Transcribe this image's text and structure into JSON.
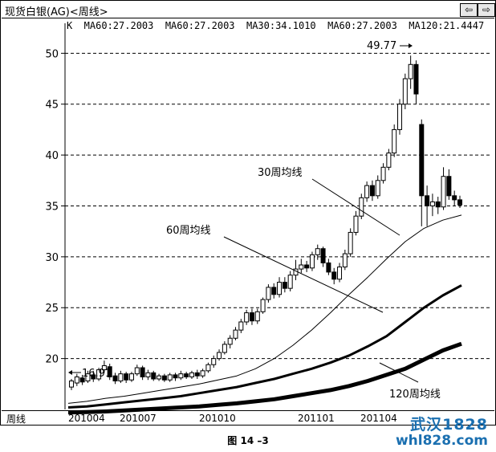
{
  "window": {
    "title": "现货白银(AG)<周线>",
    "prev_label": "⇦",
    "next_label": "⇨"
  },
  "legend_line": "K  MA60:27.2003  MA60:27.2003  MA30:34.1010  MA60:27.2003  MA120:21.4447",
  "x_axis_name": "周线",
  "caption": "图 14 –3",
  "watermark": {
    "line1": "武汉1828",
    "line2": "whl828.com"
  },
  "colors": {
    "ink": "#000000",
    "grid": "#000000",
    "watermark": "#1a6fb0"
  },
  "chart_data": {
    "type": "candlestick",
    "ylim": [
      15,
      52
    ],
    "yticks": [
      20,
      25,
      30,
      35,
      40,
      45,
      50
    ],
    "grid": "dashed horizontal",
    "x_ticks": [
      "201004",
      "201007",
      "201010",
      "201101",
      "201104"
    ],
    "annotations": {
      "high_label": "49.77",
      "low_label": "16.91",
      "ma30": "30周均线",
      "ma60": "60周均线",
      "ma120": "120周均线"
    },
    "candles": [
      [
        17.2,
        17.8,
        16.9,
        18.0
      ],
      [
        17.6,
        18.2,
        17.3,
        18.5
      ],
      [
        18.1,
        17.7,
        17.4,
        18.4
      ],
      [
        17.8,
        18.5,
        17.6,
        18.8
      ],
      [
        18.4,
        18.0,
        17.7,
        18.8
      ],
      [
        18.0,
        18.9,
        17.8,
        19.1
      ],
      [
        18.9,
        19.3,
        18.6,
        19.8
      ],
      [
        19.2,
        18.2,
        17.9,
        19.5
      ],
      [
        18.3,
        17.8,
        17.5,
        18.6
      ],
      [
        17.8,
        18.5,
        17.6,
        18.8
      ],
      [
        18.5,
        17.9,
        17.6,
        18.7
      ],
      [
        17.9,
        18.5,
        17.7,
        18.7
      ],
      [
        18.5,
        19.1,
        18.3,
        19.4
      ],
      [
        19.1,
        18.2,
        17.9,
        19.3
      ],
      [
        18.2,
        18.6,
        17.9,
        18.9
      ],
      [
        18.6,
        18.0,
        17.8,
        18.8
      ],
      [
        18.0,
        18.3,
        17.8,
        18.5
      ],
      [
        18.3,
        17.9,
        17.7,
        18.5
      ],
      [
        17.9,
        18.4,
        17.7,
        18.6
      ],
      [
        18.4,
        18.1,
        17.8,
        18.6
      ],
      [
        18.1,
        18.5,
        17.9,
        18.8
      ],
      [
        18.5,
        18.2,
        18.0,
        18.7
      ],
      [
        18.2,
        18.6,
        18.0,
        18.8
      ],
      [
        18.6,
        18.3,
        18.0,
        18.9
      ],
      [
        18.3,
        18.8,
        18.1,
        19.0
      ],
      [
        18.8,
        19.4,
        18.6,
        19.6
      ],
      [
        19.4,
        20.0,
        19.1,
        20.3
      ],
      [
        20.0,
        20.6,
        19.8,
        20.9
      ],
      [
        20.6,
        21.4,
        20.4,
        21.7
      ],
      [
        21.4,
        22.0,
        21.0,
        22.3
      ],
      [
        22.0,
        22.8,
        21.8,
        23.1
      ],
      [
        22.8,
        23.6,
        22.5,
        23.9
      ],
      [
        23.6,
        24.5,
        23.3,
        24.8
      ],
      [
        24.5,
        23.7,
        23.3,
        24.9
      ],
      [
        23.7,
        24.6,
        23.4,
        24.9
      ],
      [
        24.6,
        25.8,
        24.4,
        26.0
      ],
      [
        25.8,
        27.0,
        25.5,
        27.3
      ],
      [
        27.0,
        26.3,
        25.9,
        27.4
      ],
      [
        26.3,
        27.5,
        26.0,
        28.0
      ],
      [
        27.5,
        26.9,
        26.5,
        28.0
      ],
      [
        26.9,
        28.2,
        26.6,
        28.6
      ],
      [
        28.2,
        28.8,
        27.7,
        29.7
      ],
      [
        28.8,
        29.2,
        28.4,
        29.8
      ],
      [
        29.2,
        28.9,
        28.5,
        29.6
      ],
      [
        28.9,
        30.2,
        28.6,
        30.5
      ],
      [
        30.2,
        30.8,
        29.7,
        31.2
      ],
      [
        30.8,
        29.4,
        29.0,
        31.0
      ],
      [
        29.4,
        28.5,
        28.2,
        29.8
      ],
      [
        28.5,
        27.8,
        27.3,
        28.9
      ],
      [
        27.8,
        29.0,
        27.5,
        29.4
      ],
      [
        29.0,
        30.3,
        28.7,
        30.7
      ],
      [
        30.3,
        32.4,
        30.0,
        32.8
      ],
      [
        32.4,
        34.0,
        32.1,
        34.5
      ],
      [
        34.0,
        35.8,
        33.7,
        36.2
      ],
      [
        35.8,
        37.0,
        35.4,
        37.4
      ],
      [
        37.0,
        36.0,
        35.5,
        37.5
      ],
      [
        36.0,
        37.5,
        35.7,
        38.0
      ],
      [
        37.5,
        38.8,
        37.2,
        39.2
      ],
      [
        38.8,
        40.2,
        38.5,
        40.6
      ],
      [
        40.2,
        42.5,
        39.8,
        43.0
      ],
      [
        42.5,
        45.0,
        42.0,
        45.5
      ],
      [
        45.0,
        47.5,
        44.5,
        48.0
      ],
      [
        47.5,
        48.9,
        46.5,
        49.77
      ],
      [
        48.9,
        46.0,
        45.0,
        49.3
      ],
      [
        43.0,
        36.0,
        33.0,
        43.5
      ],
      [
        36.0,
        35.0,
        33.0,
        37.0
      ],
      [
        35.0,
        35.4,
        34.0,
        36.2
      ],
      [
        35.4,
        34.9,
        34.2,
        35.9
      ],
      [
        34.9,
        37.9,
        34.6,
        38.8
      ],
      [
        37.9,
        36.0,
        35.6,
        38.6
      ],
      [
        36.0,
        35.6,
        35.0,
        36.5
      ],
      [
        35.6,
        35.1,
        34.8,
        36.0
      ]
    ],
    "series": [
      {
        "name": "30周均线",
        "values": [
          15.6,
          15.8,
          16.1,
          16.3,
          16.6,
          16.9,
          17.2,
          17.5,
          17.9,
          18.3,
          19.0,
          20.0,
          21.3,
          22.8,
          24.5,
          26.3,
          28.0,
          29.8,
          31.5,
          32.8,
          33.6,
          34.1
        ]
      },
      {
        "name": "60周均线",
        "values": [
          15.2,
          15.3,
          15.5,
          15.7,
          15.9,
          16.1,
          16.3,
          16.6,
          16.9,
          17.2,
          17.6,
          18.0,
          18.5,
          19.0,
          19.6,
          20.3,
          21.2,
          22.2,
          23.6,
          25.0,
          26.2,
          27.2
        ]
      },
      {
        "name": "120周均线",
        "values": [
          14.7,
          14.75,
          14.8,
          14.9,
          15.0,
          15.1,
          15.2,
          15.3,
          15.45,
          15.6,
          15.8,
          16.0,
          16.3,
          16.6,
          16.9,
          17.3,
          17.8,
          18.4,
          19.0,
          19.9,
          20.8,
          21.45
        ]
      }
    ]
  }
}
